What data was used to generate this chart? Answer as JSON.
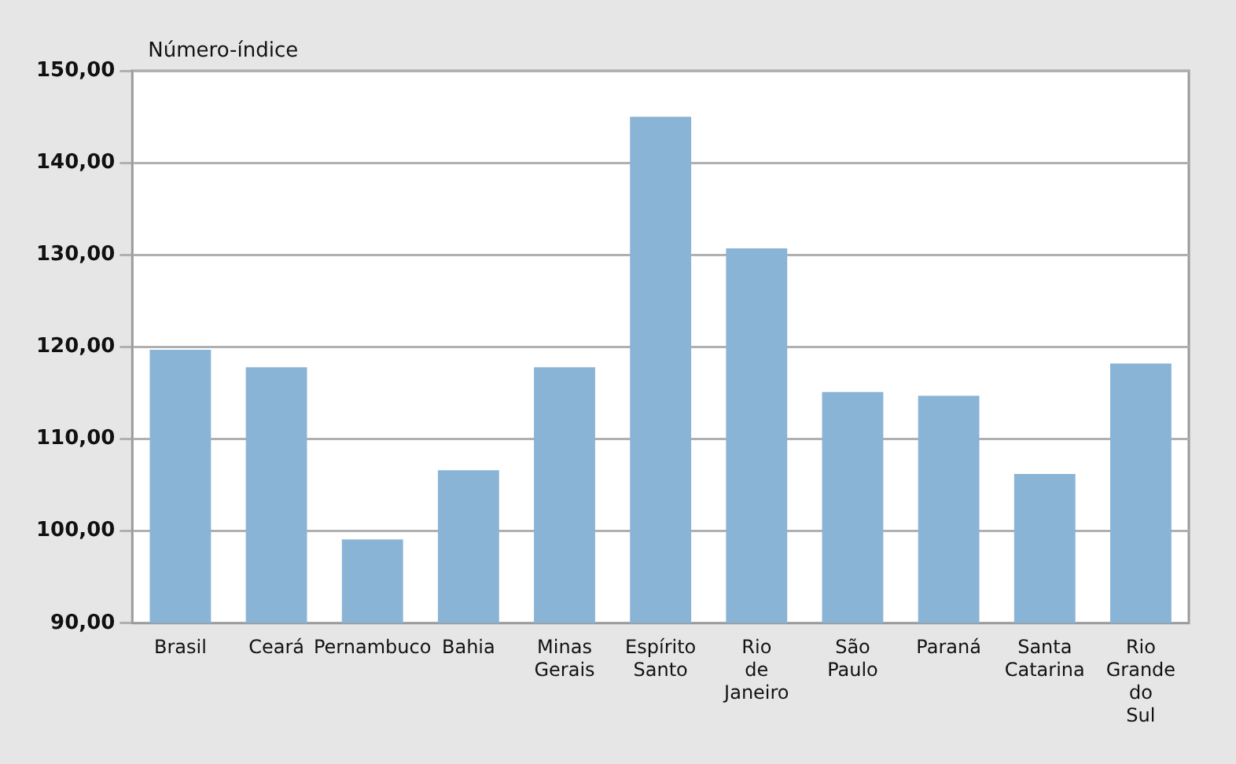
{
  "chart_data": {
    "type": "bar",
    "ylabel": "Número-índice",
    "categories": [
      "Brasil",
      "Ceará",
      "Pernambuco",
      "Bahia",
      "Minas Gerais",
      "Espírito Santo",
      "Rio de Janeiro",
      "São Paulo",
      "Paraná",
      "Santa Catarina",
      "Rio Grande do Sul"
    ],
    "values": [
      119.7,
      117.8,
      99.1,
      106.6,
      117.8,
      145.0,
      130.7,
      115.1,
      114.7,
      106.2,
      118.2
    ],
    "color": "#8ab4d6",
    "ylim": [
      90,
      150
    ],
    "yticks": [
      {
        "value": 90,
        "label": "90,00"
      },
      {
        "value": 100,
        "label": "100,00"
      },
      {
        "value": 110,
        "label": "110,00"
      },
      {
        "value": 120,
        "label": "120,00"
      },
      {
        "value": 130,
        "label": "130,00"
      },
      {
        "value": 140,
        "label": "140,00"
      },
      {
        "value": 150,
        "label": "150,00"
      }
    ],
    "grid": "y",
    "legend": false
  }
}
